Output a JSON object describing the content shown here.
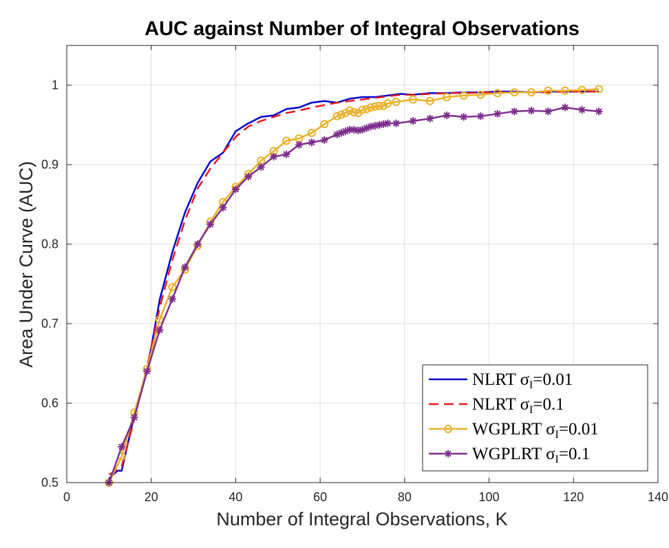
{
  "chart_data": {
    "type": "line",
    "title": "AUC against Number of Integral Observations",
    "xlabel": "Number of Integral Observations, K",
    "ylabel": "Area Under Curve (AUC)",
    "xlim": [
      0,
      140
    ],
    "ylim": [
      0.5,
      1.05
    ],
    "xticks": [
      "0",
      "20",
      "40",
      "60",
      "80",
      "100",
      "120",
      "140"
    ],
    "yticks": [
      "0.5",
      "0.6",
      "0.7",
      "0.8",
      "0.9",
      "1"
    ],
    "grid": true,
    "legend_position": "bottom-right",
    "series": [
      {
        "name": "NLRT σI=0.01",
        "label_main": "NLRT σ",
        "label_sub": "I",
        "label_tail": "=0.01",
        "color": "#0000cc",
        "style": "solid",
        "marker": "none",
        "x": [
          10,
          12,
          13,
          16,
          19,
          22,
          25,
          28,
          31,
          34,
          37,
          40,
          43,
          46,
          49,
          52,
          55,
          58,
          61,
          64,
          67,
          70,
          73,
          76,
          79,
          82,
          86,
          90,
          94,
          98,
          102,
          106,
          110,
          114,
          118,
          122,
          126
        ],
        "y": [
          0.505,
          0.515,
          0.515,
          0.585,
          0.64,
          0.73,
          0.79,
          0.84,
          0.877,
          0.904,
          0.915,
          0.942,
          0.952,
          0.96,
          0.962,
          0.97,
          0.972,
          0.978,
          0.98,
          0.978,
          0.983,
          0.985,
          0.985,
          0.987,
          0.989,
          0.988,
          0.99,
          0.99,
          0.991,
          0.991,
          0.992,
          0.992,
          0.991,
          0.992,
          0.992,
          0.992,
          0.992
        ]
      },
      {
        "name": "NLRT σI=0.1",
        "label_main": "NLRT σ",
        "label_sub": "I",
        "label_tail": "=0.1",
        "color": "#e41a1c",
        "style": "dashed",
        "marker": "none",
        "x": [
          10,
          13,
          16,
          19,
          22,
          25,
          28,
          31,
          34,
          37,
          40,
          43,
          46,
          49,
          52,
          55,
          58,
          61,
          64,
          67,
          70,
          73,
          76,
          79,
          82,
          86,
          90,
          94,
          98,
          102,
          106,
          110,
          114,
          118,
          122,
          126
        ],
        "y": [
          0.51,
          0.52,
          0.58,
          0.645,
          0.72,
          0.78,
          0.83,
          0.87,
          0.895,
          0.915,
          0.935,
          0.948,
          0.955,
          0.96,
          0.965,
          0.968,
          0.972,
          0.975,
          0.978,
          0.98,
          0.982,
          0.984,
          0.986,
          0.988,
          0.988,
          0.989,
          0.99,
          0.99,
          0.991,
          0.991,
          0.991,
          0.991,
          0.991,
          0.992,
          0.992,
          0.992
        ]
      },
      {
        "name": "WGPLRT σI=0.01",
        "label_main": "WGPLRT σ",
        "label_sub": "I",
        "label_tail": "=0.01",
        "color": "#eab028",
        "style": "solid",
        "marker": "circle",
        "x": [
          10,
          13,
          16,
          19,
          22,
          25,
          28,
          31,
          34,
          37,
          40,
          43,
          46,
          49,
          52,
          55,
          58,
          61,
          64,
          65,
          66,
          67,
          68,
          69,
          70,
          71,
          72,
          73,
          74,
          75,
          76,
          78,
          82,
          86,
          90,
          94,
          98,
          102,
          106,
          110,
          114,
          118,
          122,
          126
        ],
        "y": [
          0.5,
          0.533,
          0.588,
          0.643,
          0.705,
          0.746,
          0.768,
          0.798,
          0.828,
          0.853,
          0.872,
          0.888,
          0.905,
          0.917,
          0.93,
          0.933,
          0.94,
          0.951,
          0.961,
          0.963,
          0.965,
          0.968,
          0.966,
          0.965,
          0.969,
          0.97,
          0.972,
          0.973,
          0.974,
          0.974,
          0.977,
          0.979,
          0.982,
          0.98,
          0.985,
          0.987,
          0.988,
          0.99,
          0.991,
          0.991,
          0.993,
          0.993,
          0.994,
          0.995
        ]
      },
      {
        "name": "WGPLRT σI=0.1",
        "label_main": "WGPLRT σ",
        "label_sub": "I",
        "label_tail": "=0.1",
        "color": "#7e2f8e",
        "style": "solid",
        "marker": "star",
        "x": [
          10,
          13,
          16,
          19,
          22,
          25,
          28,
          31,
          34,
          37,
          40,
          43,
          46,
          49,
          52,
          55,
          58,
          61,
          64,
          65,
          66,
          67,
          68,
          69,
          70,
          71,
          72,
          73,
          74,
          75,
          76,
          78,
          82,
          86,
          90,
          94,
          98,
          102,
          106,
          110,
          114,
          118,
          122,
          126
        ],
        "y": [
          0.5,
          0.545,
          0.582,
          0.64,
          0.692,
          0.731,
          0.771,
          0.8,
          0.825,
          0.846,
          0.869,
          0.885,
          0.897,
          0.91,
          0.913,
          0.925,
          0.928,
          0.931,
          0.938,
          0.94,
          0.942,
          0.944,
          0.944,
          0.943,
          0.944,
          0.946,
          0.948,
          0.949,
          0.95,
          0.951,
          0.952,
          0.952,
          0.955,
          0.958,
          0.962,
          0.96,
          0.961,
          0.964,
          0.967,
          0.968,
          0.967,
          0.972,
          0.969,
          0.967
        ]
      }
    ]
  }
}
